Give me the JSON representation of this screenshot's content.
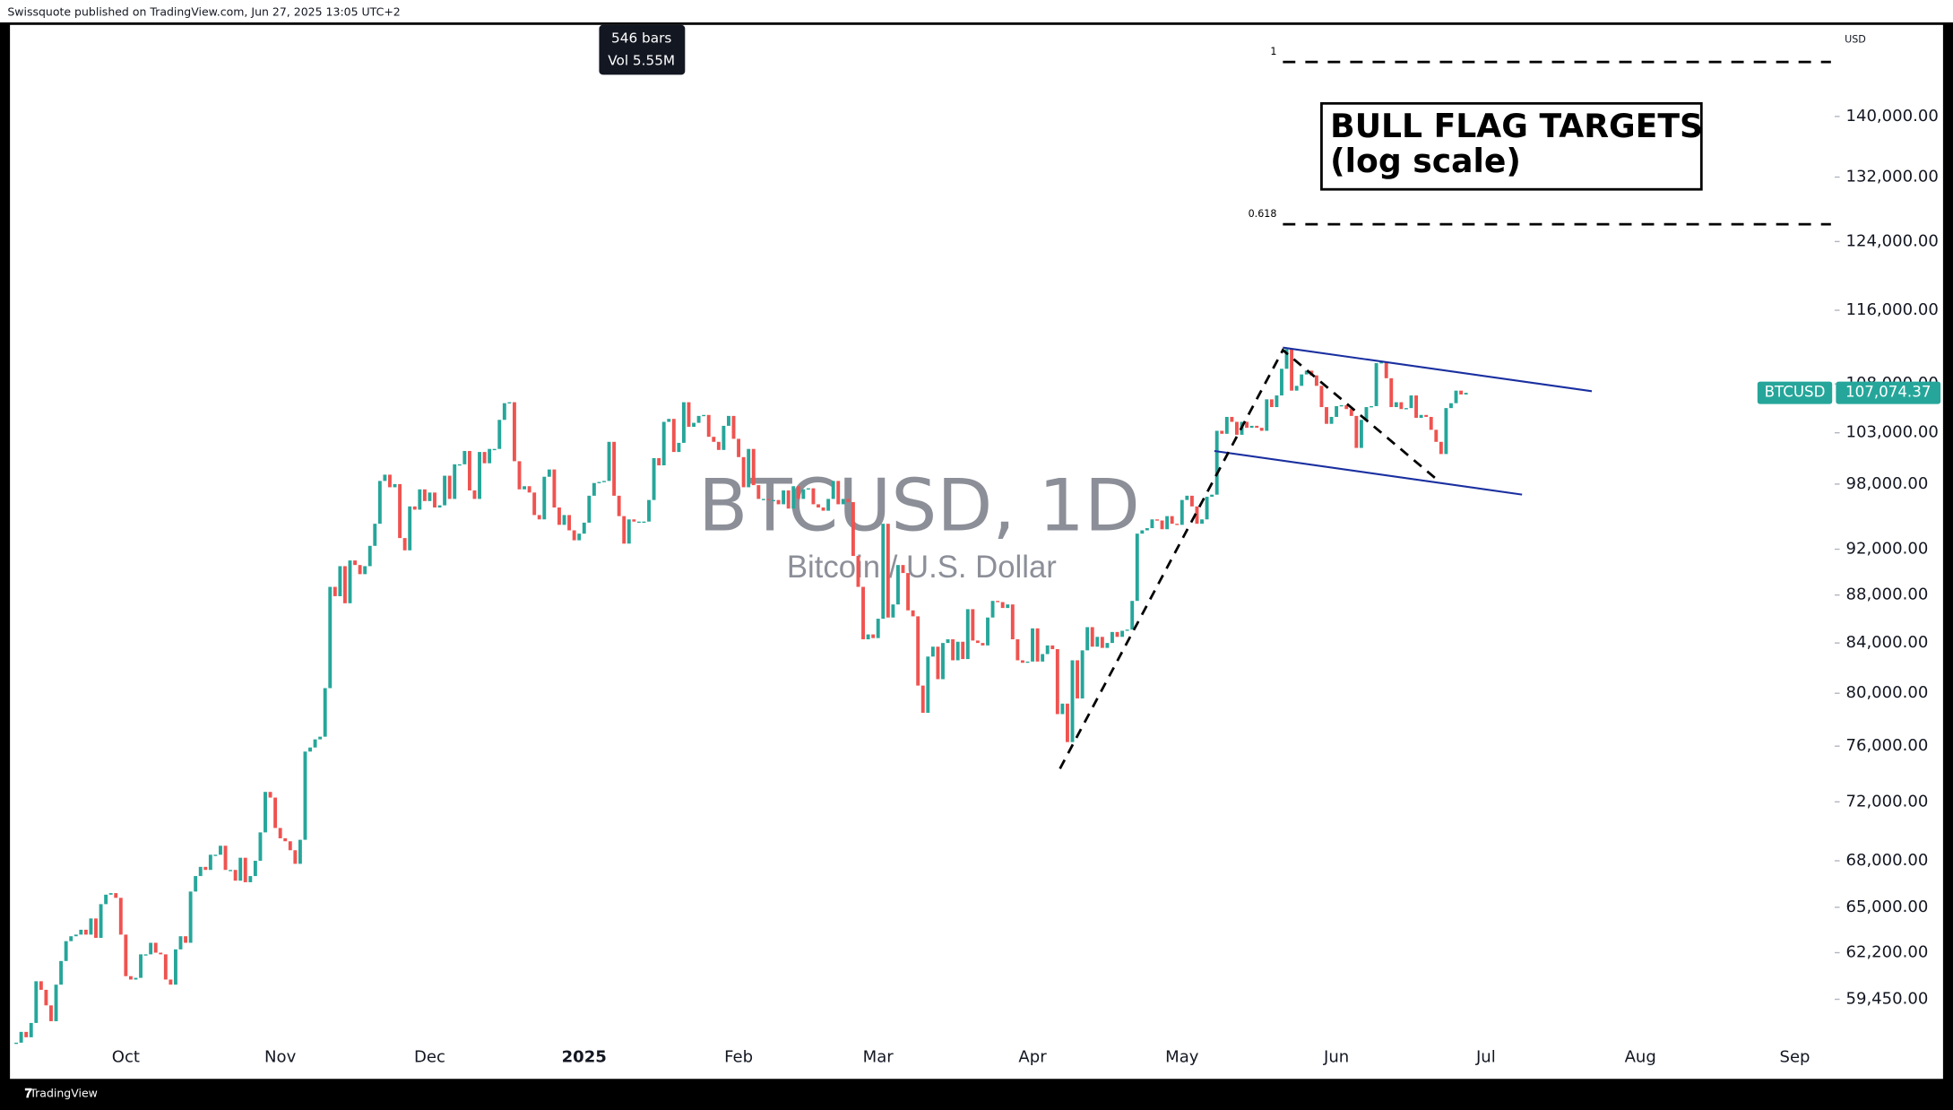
{
  "header": "Swissquote published on TradingView.com, Jun 27, 2025 13:05 UTC+2",
  "tooltip": [
    "546 bars",
    "Vol 5.55M"
  ],
  "footer": "TradingView",
  "chart_data": {
    "type": "candlestick",
    "symbol_watermark": "BTCUSD, 1D",
    "description": "Bitcoin / U.S. Dollar",
    "currency": "USD",
    "annotation": [
      "BULL FLAG TARGETS",
      "(log scale)"
    ],
    "fib_levels": [
      {
        "value": 147600,
        "label": "1"
      },
      {
        "value": 126100,
        "label": "0.618"
      }
    ],
    "price_tag": {
      "name": "BTCUSD",
      "value": 107074.37,
      "label": "107,074.37"
    },
    "log_scale": true,
    "grid": false,
    "colors": {
      "up": "#26a69a",
      "down": "#ef5350"
    },
    "xlim": [
      -1.25,
      365
    ],
    "xticks": [
      {
        "value": 22,
        "label": "Oct"
      },
      {
        "value": 53,
        "label": "Nov"
      },
      {
        "value": 83,
        "label": "Dec"
      },
      {
        "value": 114,
        "label": "2025"
      },
      {
        "value": 145,
        "label": "Feb"
      },
      {
        "value": 173,
        "label": "Mar"
      },
      {
        "value": 204,
        "label": "Apr"
      },
      {
        "value": 234,
        "label": "May"
      },
      {
        "value": 265,
        "label": "Jun"
      },
      {
        "value": 295,
        "label": "Jul"
      },
      {
        "value": 326,
        "label": "Aug"
      },
      {
        "value": 357,
        "label": "Sep"
      }
    ],
    "ylim": [
      55100,
      153000
    ],
    "yticks": [
      {
        "value": 140000,
        "label": "140,000.00"
      },
      {
        "value": 132000,
        "label": "132,000.00"
      },
      {
        "value": 124000,
        "label": "124,000.00"
      },
      {
        "value": 116000,
        "label": "116,000.00"
      },
      {
        "value": 108000,
        "label": "108,000.00"
      },
      {
        "value": 103000,
        "label": "103,000.00"
      },
      {
        "value": 98000,
        "label": "98,000.00"
      },
      {
        "value": 92000,
        "label": "92,000.00"
      },
      {
        "value": 88000,
        "label": "88,000.00"
      },
      {
        "value": 84000,
        "label": "84,000.00"
      },
      {
        "value": 80000,
        "label": "80,000.00"
      },
      {
        "value": 76000,
        "label": "76,000.00"
      },
      {
        "value": 72000,
        "label": "72,000.00"
      },
      {
        "value": 68000,
        "label": "68,000.00"
      },
      {
        "value": 65000,
        "label": "65,000.00"
      },
      {
        "value": 62200,
        "label": "62,200.00"
      },
      {
        "value": 59450,
        "label": "59,450.00"
      }
    ],
    "x": [
      0,
      1,
      2,
      3,
      4,
      5,
      6,
      7,
      8,
      9,
      10,
      11,
      12,
      13,
      14,
      15,
      16,
      17,
      18,
      19,
      20,
      21,
      22,
      23,
      24,
      25,
      26,
      27,
      28,
      29,
      30,
      31,
      32,
      33,
      34,
      35,
      36,
      37,
      38,
      39,
      40,
      41,
      42,
      43,
      44,
      45,
      46,
      47,
      48,
      49,
      50,
      51,
      52,
      53,
      54,
      55,
      56,
      57,
      58,
      59,
      60,
      61,
      62,
      63,
      64,
      65,
      66,
      67,
      68,
      69,
      70,
      71,
      72,
      73,
      74,
      75,
      76,
      77,
      78,
      79,
      80,
      81,
      82,
      83,
      84,
      85,
      86,
      87,
      88,
      89,
      90,
      91,
      92,
      93,
      94,
      95,
      96,
      97,
      98,
      99,
      100,
      101,
      102,
      103,
      104,
      105,
      106,
      107,
      108,
      109,
      110,
      111,
      112,
      113,
      114,
      115,
      116,
      117,
      118,
      119,
      120,
      121,
      122,
      123,
      124,
      125,
      126,
      127,
      128,
      129,
      130,
      131,
      132,
      133,
      134,
      135,
      136,
      137,
      138,
      139,
      140,
      141,
      142,
      143,
      144,
      145,
      146,
      147,
      148,
      149,
      150,
      151,
      152,
      153,
      154,
      155,
      156,
      157,
      158,
      159,
      160,
      161,
      162,
      163,
      164,
      165,
      166,
      167,
      168,
      169,
      170,
      171,
      172,
      173,
      174,
      175,
      176,
      177,
      178,
      179,
      180,
      181,
      182,
      183,
      184,
      185,
      186,
      187,
      188,
      189,
      190,
      191,
      192,
      193,
      194,
      195,
      196,
      197,
      198,
      199,
      200,
      201,
      202,
      203,
      204,
      205,
      206,
      207,
      208,
      209,
      210,
      211,
      212,
      213,
      214,
      215,
      216,
      217,
      218,
      219,
      220,
      221,
      222,
      223,
      224,
      225,
      226,
      227,
      228,
      229,
      230,
      231,
      232,
      233,
      234,
      235,
      236,
      237,
      238,
      239,
      240,
      241,
      242,
      243,
      244,
      245,
      246,
      247,
      248,
      249,
      250,
      251,
      252,
      253,
      254,
      255,
      256,
      257,
      258,
      259,
      260,
      261,
      262,
      263,
      264,
      265,
      266,
      267,
      268,
      269,
      270,
      271,
      272,
      273,
      274,
      275,
      276,
      277,
      278,
      279,
      280,
      281,
      282,
      283,
      284,
      285,
      286,
      287,
      288,
      289,
      290,
      291
    ],
    "values": [
      57000,
      57600,
      57300,
      58100,
      60500,
      60000,
      59100,
      58200,
      60300,
      61700,
      62900,
      63200,
      63300,
      63600,
      63300,
      64300,
      63100,
      65200,
      65800,
      65900,
      65600,
      63300,
      60800,
      60600,
      60700,
      62100,
      62100,
      62800,
      62200,
      62100,
      60600,
      60300,
      62400,
      63200,
      62800,
      66000,
      67000,
      67600,
      67400,
      68400,
      68400,
      69000,
      67400,
      67400,
      66700,
      68200,
      66600,
      67000,
      68000,
      69900,
      72700,
      72300,
      70200,
      69500,
      69300,
      68700,
      67800,
      69400,
      75600,
      75900,
      76500,
      76700,
      80400,
      88700,
      87900,
      90500,
      87300,
      91000,
      90600,
      89800,
      90500,
      92300,
      94300,
      98300,
      98900,
      97700,
      98000,
      93000,
      91900,
      95900,
      95600,
      97500,
      96400,
      97200,
      95800,
      96000,
      98800,
      96600,
      99900,
      99900,
      101200,
      97400,
      96600,
      101100,
      100000,
      101400,
      101400,
      104300,
      106000,
      106100,
      100200,
      97500,
      97800,
      97200,
      95100,
      94700,
      98700,
      99400,
      95800,
      94200,
      95100,
      93700,
      92800,
      93400,
      94400,
      96900,
      98100,
      98200,
      98300,
      102100,
      96900,
      95000,
      92500,
      94700,
      94500,
      94500,
      94500,
      96500,
      100500,
      99800,
      104100,
      104400,
      101100,
      102000,
      106100,
      103600,
      104000,
      104700,
      104800,
      102600,
      102100,
      101300,
      103700,
      104700,
      102400,
      100600,
      97700,
      101400,
      97900,
      96600,
      96600,
      96500,
      96500,
      96100,
      97400,
      95700,
      97800,
      96600,
      97500,
      97600,
      96100,
      95800,
      95500,
      96600,
      98300,
      96100,
      96600,
      96300,
      91400,
      88700,
      84300,
      84700,
      84400,
      86000,
      94300,
      86100,
      87200,
      90600,
      89900,
      86700,
      86200,
      80600,
      78500,
      82900,
      83700,
      81100,
      84000,
      84300,
      82600,
      84100,
      82700,
      86800,
      84200,
      84000,
      83800,
      86100,
      87500,
      87400,
      86900,
      87200,
      84300,
      82600,
      82400,
      82500,
      85200,
      82500,
      83100,
      83800,
      83500,
      78400,
      79200,
      76300,
      82600,
      79600,
      83400,
      85300,
      83700,
      84500,
      83600,
      84000,
      84900,
      84500,
      85000,
      85100,
      87500,
      93400,
      93700,
      93900,
      94700,
      94600,
      93800,
      95000,
      94300,
      94200,
      96500,
      96900,
      95900,
      94300,
      94700,
      96800,
      97000,
      103200,
      102900,
      104600,
      104100,
      102800,
      104100,
      103500,
      103700,
      103500,
      103200,
      106400,
      105600,
      106800,
      109600,
      111700,
      107300,
      107800,
      109000,
      109400,
      108900,
      107800,
      105600,
      103900,
      104600,
      105700,
      105800,
      105400,
      104700,
      101500,
      104300,
      105600,
      105700,
      110200,
      110300,
      108600,
      105600,
      106100,
      105400,
      105500,
      106800,
      104500,
      104800,
      104600,
      103300,
      102100,
      100900,
      105500,
      106000,
      107300,
      106900,
      107074.37
    ]
  }
}
